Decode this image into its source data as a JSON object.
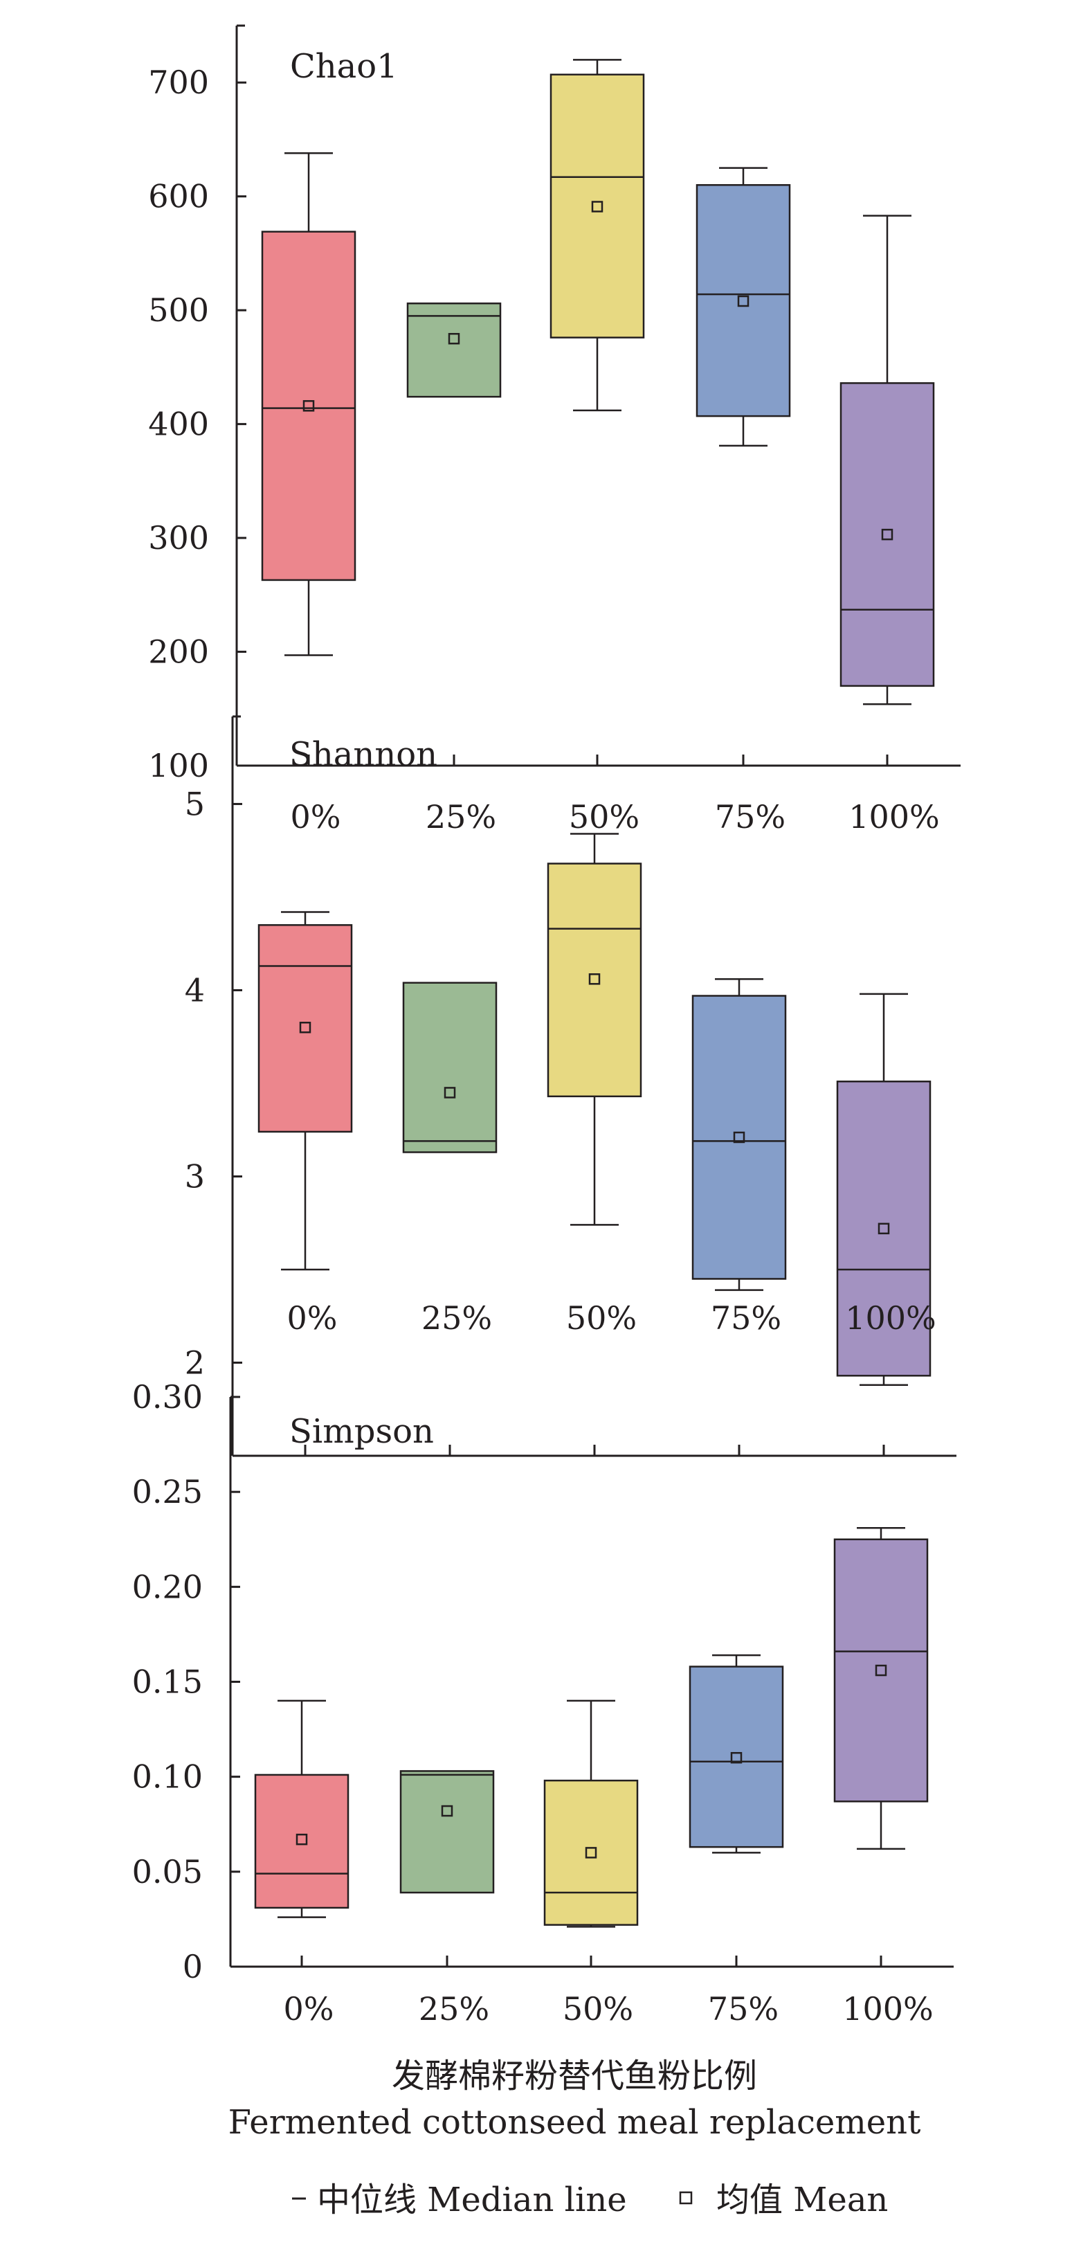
{
  "chart_data": [
    {
      "type": "box",
      "title": "Chao1",
      "categories": [
        "0%",
        "25%",
        "50%",
        "75%",
        "100%"
      ],
      "ylim": [
        100,
        750
      ],
      "yticks": [
        100,
        200,
        300,
        400,
        500,
        600,
        700
      ],
      "ytick_labels": [
        "100",
        "200",
        "300",
        "400",
        "500",
        "600",
        "700"
      ],
      "boxes": [
        {
          "min": 197,
          "q1": 263,
          "median": 414,
          "q3": 569,
          "max": 638,
          "mean": 416
        },
        {
          "min": 424,
          "q1": 424,
          "median": 495,
          "q3": 506,
          "max": 506,
          "mean": 475
        },
        {
          "min": 412,
          "q1": 476,
          "median": 617,
          "q3": 707,
          "max": 720,
          "mean": 591
        },
        {
          "min": 381,
          "q1": 407,
          "median": 514,
          "q3": 610,
          "max": 625,
          "mean": 508
        },
        {
          "min": 154,
          "q1": 170,
          "median": 237,
          "q3": 436,
          "max": 583,
          "mean": 303
        }
      ]
    },
    {
      "type": "box",
      "title": "Shannon",
      "categories": [
        "0%",
        "25%",
        "50%",
        "75%",
        "100%"
      ],
      "ylim": [
        1.5,
        5.47
      ],
      "yticks": [
        2,
        3,
        4,
        5
      ],
      "ytick_labels": [
        "2",
        "3",
        "4",
        "5"
      ],
      "boxes": [
        {
          "min": 2.5,
          "q1": 3.24,
          "median": 4.13,
          "q3": 4.35,
          "max": 4.42,
          "mean": 3.8
        },
        {
          "min": 3.13,
          "q1": 3.13,
          "median": 3.19,
          "q3": 4.04,
          "max": 4.04,
          "mean": 3.45
        },
        {
          "min": 2.74,
          "q1": 3.43,
          "median": 4.33,
          "q3": 4.68,
          "max": 4.84,
          "mean": 4.06
        },
        {
          "min": 2.39,
          "q1": 2.45,
          "median": 3.19,
          "q3": 3.97,
          "max": 4.06,
          "mean": 3.21
        },
        {
          "min": 1.88,
          "q1": 1.93,
          "median": 2.5,
          "q3": 3.51,
          "max": 3.98,
          "mean": 2.72
        }
      ]
    },
    {
      "type": "box",
      "title": "Simpson",
      "categories": [
        "0%",
        "25%",
        "50%",
        "75%",
        "100%"
      ],
      "ylim": [
        0,
        0.3
      ],
      "yticks": [
        0,
        0.05,
        0.1,
        0.15,
        0.2,
        0.25,
        0.3
      ],
      "ytick_labels": [
        "0",
        "0.05",
        "0.10",
        "0.15",
        "0.20",
        "0.25",
        "0.30"
      ],
      "boxes": [
        {
          "min": 0.026,
          "q1": 0.031,
          "median": 0.049,
          "q3": 0.101,
          "max": 0.14,
          "mean": 0.067
        },
        {
          "min": 0.039,
          "q1": 0.039,
          "median": 0.101,
          "q3": 0.103,
          "max": 0.103,
          "mean": 0.082
        },
        {
          "min": 0.021,
          "q1": 0.022,
          "median": 0.039,
          "q3": 0.098,
          "max": 0.14,
          "mean": 0.06
        },
        {
          "min": 0.06,
          "q1": 0.063,
          "median": 0.108,
          "q3": 0.158,
          "max": 0.164,
          "mean": 0.11
        },
        {
          "min": 0.062,
          "q1": 0.087,
          "median": 0.166,
          "q3": 0.225,
          "max": 0.231,
          "mean": 0.156
        }
      ]
    }
  ],
  "colors": [
    "#ec868d",
    "#9bba94",
    "#e7d982",
    "#859ec9",
    "#a392c1"
  ],
  "xlabel_cn": "发酵棉籽粉替代鱼粉比例",
  "xlabel_en": "Fermented cottonseed meal replacement",
  "legend": {
    "median": "中位线 Median line",
    "mean": "均值 Mean"
  }
}
